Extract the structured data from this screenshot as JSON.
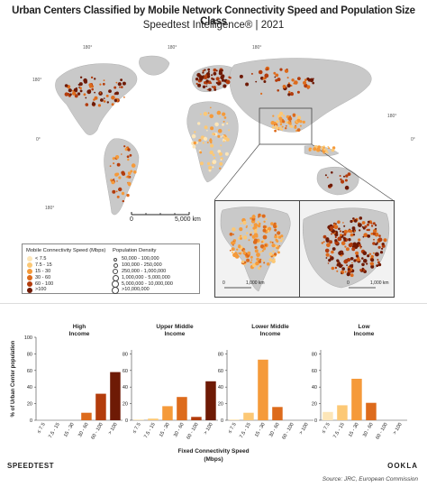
{
  "header": {
    "title": "Urban Centers Classified by Mobile Network Connectivity Speed and Population Size Class",
    "subtitle": "Speedtest Intelligence® | 2021"
  },
  "map": {
    "scale_zero": "0",
    "scale_end": "5,000 km",
    "inset_scale_zero": "0",
    "inset_scale_end": "1,000 km",
    "degree_labels": [
      "180°",
      "180°",
      "180°",
      "180°",
      "180°",
      "180°",
      "0°",
      "0°"
    ]
  },
  "legend": {
    "speed_title": "Mobile Connectivity Speed (Mbps)",
    "speed_items": [
      "< 7.5",
      "7.5 - 15",
      "15 - 30",
      "30 - 60",
      "60 - 100",
      ">100"
    ],
    "pop_title": "Population Density",
    "pop_items": [
      "50,000 - 100,000",
      "100,000 - 250,000",
      "250,000 - 1,000,000",
      "1,000,000 - 5,000,000",
      "5,000,000 - 10,000,000",
      ">10,000,000"
    ]
  },
  "colors": {
    "speed": [
      "#fde6b8",
      "#fcc875",
      "#f59a3a",
      "#dd6b1c",
      "#b33c0c",
      "#6e1a05"
    ],
    "land": "#c9c9c9",
    "ocean": "#ffffff"
  },
  "chart_data": {
    "type": "bar",
    "ylabel": "% of Urban Center population",
    "xlabel": "Fixed Connectivity Speed\n(Mbps)",
    "xlabel_line1": "Fixed Connectivity Speed",
    "xlabel_line2": "(Mbps)",
    "categories": [
      "≤ 7.5",
      "7.5 - 15",
      "15 - 30",
      "30 - 60",
      "60 - 100",
      "> 100"
    ],
    "ylim": [
      0,
      100
    ],
    "yticks": [
      0,
      20,
      40,
      60,
      80,
      100
    ],
    "panels": [
      {
        "name": "High Income",
        "name_line1": "High",
        "name_line2": "Income",
        "values": [
          0,
          0,
          0,
          9,
          32,
          58
        ]
      },
      {
        "name": "Upper Middle Income",
        "name_line1": "Upper Middle",
        "name_line2": "Income",
        "values": [
          1,
          2,
          17,
          28,
          4,
          47
        ]
      },
      {
        "name": "Lower Middle Income",
        "name_line1": "Lower Middle",
        "name_line2": "Income",
        "values": [
          1,
          9,
          73,
          16,
          0,
          0
        ]
      },
      {
        "name": "Low Income",
        "name_line1": "Low",
        "name_line2": "Income",
        "values": [
          10,
          18,
          50,
          21,
          0,
          0
        ]
      }
    ],
    "bar_colors": [
      "#fde6b8",
      "#fcc875",
      "#f59a3a",
      "#dd6b1c",
      "#b33c0c",
      "#6e1a05"
    ]
  },
  "footer": {
    "brand": "SPEEDTEST",
    "ookla": "OOKLA",
    "source": "Source: JRC, European Commission"
  }
}
